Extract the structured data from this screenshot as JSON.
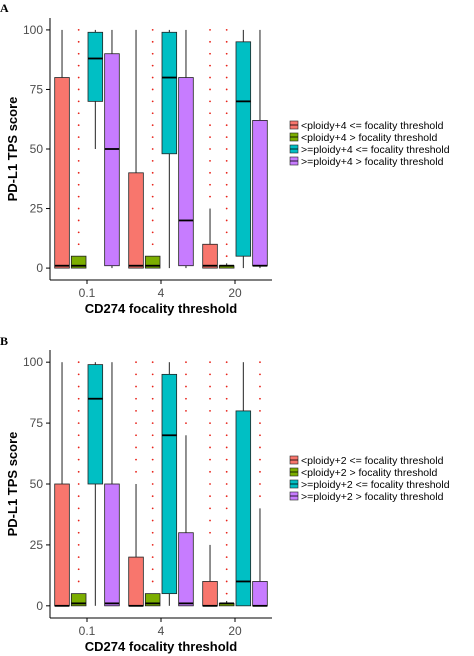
{
  "colors": {
    "series": [
      "#f8766d",
      "#7cae00",
      "#00bfc4",
      "#c77cff"
    ],
    "outlier": "#e8231a",
    "axis": "#000000",
    "box_stroke": "#222222"
  },
  "chart_data": [
    {
      "panel": "A",
      "type": "boxplot",
      "title": "",
      "xlabel": "CD274 focality threshold",
      "ylabel": "PD-L1 TPS score",
      "ylim": [
        0,
        100
      ],
      "yticks": [
        0,
        25,
        50,
        75,
        100
      ],
      "categories": [
        "0.1",
        "4",
        "20"
      ],
      "legend_position": "right",
      "grid": false,
      "series": [
        {
          "name": "<ploidy+4 <= focality threshold",
          "boxes": [
            {
              "q1": 0,
              "median": 1,
              "q3": 80,
              "whisker_low": 0,
              "whisker_high": 100,
              "outliers": []
            },
            {
              "q1": 0,
              "median": 1,
              "q3": 40,
              "whisker_low": 0,
              "whisker_high": 100,
              "outliers": []
            },
            {
              "q1": 0,
              "median": 1,
              "q3": 10,
              "whisker_low": 0,
              "whisker_high": 25,
              "outliers": [
                30,
                35,
                40,
                45,
                50,
                55,
                60,
                65,
                70,
                75,
                80,
                85,
                90,
                95,
                100
              ]
            }
          ]
        },
        {
          "name": "<ploidy+4 > focality threshold",
          "boxes": [
            {
              "q1": 0,
              "median": 1,
              "q3": 5,
              "whisker_low": 0,
              "whisker_high": 5,
              "outliers": [
                10,
                15,
                20,
                25,
                30,
                35,
                40,
                45,
                50,
                55,
                60,
                65,
                70,
                75,
                80,
                85,
                90,
                95,
                100
              ]
            },
            {
              "q1": 0,
              "median": 1,
              "q3": 5,
              "whisker_low": 0,
              "whisker_high": 5,
              "outliers": [
                10,
                15,
                20,
                25,
                30,
                35,
                40,
                45,
                50,
                55,
                60,
                65,
                70,
                75,
                80,
                85,
                90,
                95,
                100
              ]
            },
            {
              "q1": 0,
              "median": 1,
              "q3": 1,
              "whisker_low": 0,
              "whisker_high": 2,
              "outliers": [
                5,
                10,
                15,
                20,
                25,
                30,
                35,
                40,
                45,
                50,
                55,
                60,
                65,
                70,
                75,
                80,
                85,
                90,
                95,
                100
              ]
            }
          ]
        },
        {
          "name": ">=ploidy+4 <= focality threshold",
          "boxes": [
            {
              "q1": 70,
              "median": 88,
              "q3": 99,
              "whisker_low": 50,
              "whisker_high": 100,
              "outliers": []
            },
            {
              "q1": 48,
              "median": 80,
              "q3": 99,
              "whisker_low": 0,
              "whisker_high": 100,
              "outliers": []
            },
            {
              "q1": 5,
              "median": 70,
              "q3": 95,
              "whisker_low": 0,
              "whisker_high": 100,
              "outliers": []
            }
          ]
        },
        {
          "name": ">=ploidy+4 > focality threshold",
          "boxes": [
            {
              "q1": 1,
              "median": 50,
              "q3": 90,
              "whisker_low": 0,
              "whisker_high": 100,
              "outliers": []
            },
            {
              "q1": 1,
              "median": 20,
              "q3": 80,
              "whisker_low": 0,
              "whisker_high": 100,
              "outliers": []
            },
            {
              "q1": 1,
              "median": 1,
              "q3": 62,
              "whisker_low": 0,
              "whisker_high": 100,
              "outliers": []
            }
          ]
        }
      ]
    },
    {
      "panel": "B",
      "type": "boxplot",
      "title": "",
      "xlabel": "CD274 focality threshold",
      "ylabel": "PD-L1 TPS score",
      "ylim": [
        0,
        100
      ],
      "yticks": [
        0,
        25,
        50,
        75,
        100
      ],
      "categories": [
        "0.1",
        "4",
        "20"
      ],
      "legend_position": "right",
      "grid": false,
      "series": [
        {
          "name": "<ploidy+2 <= focality threshold",
          "boxes": [
            {
              "q1": 0,
              "median": 0,
              "q3": 50,
              "whisker_low": 0,
              "whisker_high": 100,
              "outliers": []
            },
            {
              "q1": 0,
              "median": 0,
              "q3": 20,
              "whisker_low": 0,
              "whisker_high": 50,
              "outliers": [
                55,
                60,
                65,
                70,
                75,
                80,
                85,
                90,
                95,
                100
              ]
            },
            {
              "q1": 0,
              "median": 0,
              "q3": 10,
              "whisker_low": 0,
              "whisker_high": 25,
              "outliers": [
                30,
                35,
                40,
                45,
                50,
                55,
                60,
                65,
                70,
                75,
                80,
                85,
                90,
                95,
                100
              ]
            }
          ]
        },
        {
          "name": "<ploidy+2 > focality threshold",
          "boxes": [
            {
              "q1": 0,
              "median": 1,
              "q3": 5,
              "whisker_low": 0,
              "whisker_high": 5,
              "outliers": [
                10,
                15,
                20,
                25,
                30,
                35,
                40,
                45,
                50,
                55,
                60,
                65,
                70,
                75,
                80,
                85,
                90,
                95,
                100
              ]
            },
            {
              "q1": 0,
              "median": 1,
              "q3": 5,
              "whisker_low": 0,
              "whisker_high": 5,
              "outliers": [
                10,
                15,
                20,
                25,
                30,
                35,
                40,
                45,
                50,
                55,
                60,
                65,
                70,
                75,
                80,
                85,
                90,
                95,
                100
              ]
            },
            {
              "q1": 0,
              "median": 1,
              "q3": 1,
              "whisker_low": 0,
              "whisker_high": 2,
              "outliers": [
                5,
                10,
                15,
                20,
                25,
                30,
                35,
                40,
                45,
                50,
                55,
                60,
                65,
                70,
                75,
                80,
                85,
                90,
                95,
                100
              ]
            }
          ]
        },
        {
          "name": ">=ploidy+2 <= focality threshold",
          "boxes": [
            {
              "q1": 50,
              "median": 85,
              "q3": 99,
              "whisker_low": 0,
              "whisker_high": 100,
              "outliers": []
            },
            {
              "q1": 5,
              "median": 70,
              "q3": 95,
              "whisker_low": 0,
              "whisker_high": 100,
              "outliers": []
            },
            {
              "q1": 0,
              "median": 10,
              "q3": 80,
              "whisker_low": 0,
              "whisker_high": 100,
              "outliers": []
            }
          ]
        },
        {
          "name": ">=ploidy+2 > focality threshold",
          "boxes": [
            {
              "q1": 0,
              "median": 1,
              "q3": 50,
              "whisker_low": 0,
              "whisker_high": 100,
              "outliers": []
            },
            {
              "q1": 0,
              "median": 1,
              "q3": 30,
              "whisker_low": 0,
              "whisker_high": 70,
              "outliers": [
                75,
                80,
                85,
                90,
                95,
                100
              ]
            },
            {
              "q1": 0,
              "median": 0,
              "q3": 10,
              "whisker_low": 0,
              "whisker_high": 40,
              "outliers": [
                45,
                50,
                55,
                60,
                65,
                70,
                75,
                80,
                85,
                90,
                95,
                100
              ]
            }
          ]
        }
      ]
    }
  ]
}
